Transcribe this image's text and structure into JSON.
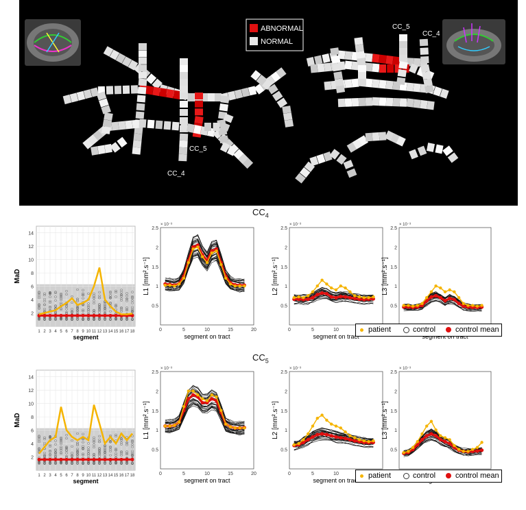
{
  "top_panel": {
    "legend": {
      "abnormal": "ABNORMAL",
      "normal": "NORMAL"
    },
    "left_labels": {
      "cc4": "CC_4",
      "cc5": "CC_5"
    },
    "right_labels": {
      "cc4": "CC_4",
      "cc5": "CC_5"
    },
    "colors": {
      "abnormal": "#e01010",
      "normal": "#e8e8e8",
      "background": "#000000"
    }
  },
  "rows": [
    {
      "title_base": "CC",
      "title_sub": "4"
    },
    {
      "title_base": "CC",
      "title_sub": "5"
    }
  ],
  "legend": {
    "patient": "patient",
    "control": "control",
    "control_mean": "control mean"
  },
  "chart_data": [
    {
      "type": "scatter",
      "row": 0,
      "panel": "MaD",
      "ylabel": "MaD",
      "xlabel": "segment",
      "xticks": [
        1,
        2,
        3,
        4,
        5,
        6,
        7,
        8,
        9,
        10,
        11,
        12,
        13,
        14,
        15,
        16,
        17,
        18
      ],
      "ylim": [
        0,
        15
      ],
      "yticks": [
        2,
        4,
        6,
        8,
        10,
        12,
        14
      ],
      "threshold": 6.3,
      "grid": true,
      "patient": [
        1.8,
        2.0,
        2.2,
        2.4,
        3.0,
        3.5,
        4.2,
        3.2,
        3.5,
        4.0,
        6.0,
        8.8,
        4.0,
        3.0,
        2.2,
        1.8,
        1.8,
        1.9
      ],
      "control_mean": [
        1.6,
        1.6,
        1.6,
        1.6,
        1.6,
        1.6,
        1.6,
        1.6,
        1.6,
        1.6,
        1.6,
        1.6,
        1.6,
        1.6,
        1.6,
        1.6,
        1.6,
        1.6
      ]
    },
    {
      "type": "line",
      "row": 0,
      "panel": "L1",
      "ylabel": "L1 [mm².s⁻¹]",
      "xlabel": "segment on tract",
      "exponent": "× 10⁻³",
      "xlim": [
        0,
        20
      ],
      "xticks": [
        0,
        5,
        10,
        15,
        20
      ],
      "ylim": [
        0,
        2.5
      ],
      "yticks": [
        0,
        0.5,
        1,
        1.5,
        2,
        2.5
      ],
      "x": [
        1,
        2,
        3,
        4,
        5,
        6,
        7,
        8,
        9,
        10,
        11,
        12,
        13,
        14,
        15,
        16,
        17,
        18
      ],
      "patient": [
        1.02,
        1.02,
        1.0,
        1.05,
        1.2,
        1.6,
        1.95,
        2.0,
        1.75,
        1.6,
        1.85,
        1.9,
        1.55,
        1.2,
        1.05,
        1.0,
        1.0,
        1.0
      ],
      "control_mean": [
        1.05,
        1.04,
        1.02,
        1.06,
        1.25,
        1.65,
        2.0,
        2.05,
        1.8,
        1.65,
        1.9,
        1.95,
        1.6,
        1.25,
        1.08,
        1.03,
        1.02,
        1.02
      ]
    },
    {
      "type": "line",
      "row": 0,
      "panel": "L2",
      "ylabel": "L2 [mm².s⁻¹]",
      "xlabel": "segment on tract",
      "exponent": "× 10⁻³",
      "xlim": [
        0,
        20
      ],
      "xticks": [
        0,
        5,
        10,
        15,
        20
      ],
      "ylim": [
        0,
        2.5
      ],
      "yticks": [
        0,
        0.5,
        1,
        1.5,
        2,
        2.5
      ],
      "x": [
        1,
        2,
        3,
        4,
        5,
        6,
        7,
        8,
        9,
        10,
        11,
        12,
        13,
        14,
        15,
        16,
        17,
        18
      ],
      "patient": [
        0.7,
        0.72,
        0.7,
        0.75,
        0.85,
        1.0,
        1.15,
        1.05,
        0.95,
        0.9,
        1.0,
        0.95,
        0.85,
        0.75,
        0.72,
        0.7,
        0.7,
        0.72
      ],
      "control_mean": [
        0.66,
        0.66,
        0.65,
        0.66,
        0.7,
        0.78,
        0.82,
        0.8,
        0.72,
        0.7,
        0.73,
        0.72,
        0.7,
        0.68,
        0.66,
        0.65,
        0.66,
        0.67
      ]
    },
    {
      "type": "line",
      "row": 0,
      "panel": "L3",
      "ylabel": "L3 [mm².s⁻¹]",
      "xlabel": "segment on tract",
      "exponent": "× 10⁻³",
      "xlim": [
        0,
        20
      ],
      "xticks": [
        0,
        5,
        10,
        15,
        20
      ],
      "ylim": [
        0,
        2.5
      ],
      "yticks": [
        0,
        0.5,
        1,
        1.5,
        2,
        2.5
      ],
      "x": [
        1,
        2,
        3,
        4,
        5,
        6,
        7,
        8,
        9,
        10,
        11,
        12,
        13,
        14,
        15,
        16,
        17,
        18
      ],
      "patient": [
        0.5,
        0.5,
        0.48,
        0.5,
        0.55,
        0.7,
        0.85,
        1.0,
        0.95,
        0.85,
        0.9,
        0.85,
        0.7,
        0.55,
        0.5,
        0.5,
        0.48,
        0.5
      ],
      "control_mean": [
        0.46,
        0.46,
        0.45,
        0.46,
        0.5,
        0.62,
        0.72,
        0.75,
        0.7,
        0.62,
        0.68,
        0.65,
        0.55,
        0.48,
        0.46,
        0.45,
        0.45,
        0.46
      ]
    },
    {
      "type": "scatter",
      "row": 1,
      "panel": "MaD",
      "ylabel": "MaD",
      "xlabel": "segment",
      "xticks": [
        1,
        2,
        3,
        4,
        5,
        6,
        7,
        8,
        9,
        10,
        11,
        12,
        13,
        14,
        15,
        16,
        17,
        18
      ],
      "ylim": [
        0,
        15
      ],
      "yticks": [
        2,
        4,
        6,
        8,
        10,
        12,
        14
      ],
      "threshold": 6.3,
      "grid": true,
      "patient": [
        2.5,
        3.5,
        4.5,
        5.0,
        9.5,
        6.0,
        5.0,
        4.5,
        5.0,
        4.5,
        9.8,
        7.0,
        4.0,
        5.0,
        4.0,
        5.5,
        4.5,
        5.5
      ],
      "control_mean": [
        1.6,
        1.6,
        1.6,
        1.6,
        1.6,
        1.6,
        1.6,
        1.6,
        1.6,
        1.6,
        1.6,
        1.6,
        1.6,
        1.6,
        1.6,
        1.6,
        1.6,
        1.6
      ]
    },
    {
      "type": "line",
      "row": 1,
      "panel": "L1",
      "ylabel": "L1 [mm².s⁻¹]",
      "xlabel": "segment on tract",
      "exponent": "× 10⁻³",
      "xlim": [
        0,
        20
      ],
      "xticks": [
        0,
        5,
        10,
        15,
        20
      ],
      "ylim": [
        0,
        2.5
      ],
      "yticks": [
        0,
        0.5,
        1,
        1.5,
        2,
        2.5
      ],
      "x": [
        1,
        2,
        3,
        4,
        5,
        6,
        7,
        8,
        9,
        10,
        11,
        12,
        13,
        14,
        15,
        16,
        17,
        18
      ],
      "patient": [
        1.1,
        1.1,
        1.12,
        1.2,
        1.6,
        2.0,
        2.0,
        1.9,
        1.8,
        1.75,
        1.9,
        1.85,
        1.5,
        1.15,
        1.08,
        1.05,
        1.05,
        1.05
      ],
      "control_mean": [
        1.1,
        1.1,
        1.12,
        1.2,
        1.5,
        1.8,
        1.9,
        1.85,
        1.7,
        1.7,
        1.8,
        1.75,
        1.45,
        1.15,
        1.08,
        1.05,
        1.05,
        1.06
      ]
    },
    {
      "type": "line",
      "row": 1,
      "panel": "L2",
      "ylabel": "L2 [mm².s⁻¹]",
      "xlabel": "segment on tract",
      "exponent": "× 10⁻³",
      "xlim": [
        0,
        20
      ],
      "xticks": [
        0,
        5,
        10,
        15,
        20
      ],
      "ylim": [
        0,
        2.5
      ],
      "yticks": [
        0,
        0.5,
        1,
        1.5,
        2,
        2.5
      ],
      "x": [
        1,
        2,
        3,
        4,
        5,
        6,
        7,
        8,
        9,
        10,
        11,
        12,
        13,
        14,
        15,
        16,
        17,
        18
      ],
      "patient": [
        0.62,
        0.65,
        0.75,
        0.9,
        1.1,
        1.3,
        1.38,
        1.25,
        1.15,
        1.1,
        1.05,
        0.95,
        0.85,
        0.8,
        0.75,
        0.72,
        0.7,
        0.72
      ],
      "control_mean": [
        0.6,
        0.62,
        0.68,
        0.75,
        0.82,
        0.88,
        0.9,
        0.88,
        0.85,
        0.82,
        0.8,
        0.78,
        0.75,
        0.72,
        0.7,
        0.68,
        0.67,
        0.68
      ]
    },
    {
      "type": "line",
      "row": 1,
      "panel": "L3",
      "ylabel": "L3 [mm².s⁻¹]",
      "xlabel": "segment on tract",
      "exponent": "× 10⁻³",
      "xlim": [
        0,
        20
      ],
      "xticks": [
        0,
        5,
        10,
        15,
        20
      ],
      "ylim": [
        0,
        2.5
      ],
      "yticks": [
        0,
        0.5,
        1,
        1.5,
        2,
        2.5
      ],
      "x": [
        1,
        2,
        3,
        4,
        5,
        6,
        7,
        8,
        9,
        10,
        11,
        12,
        13,
        14,
        15,
        16,
        17,
        18
      ],
      "patient": [
        0.42,
        0.45,
        0.55,
        0.7,
        0.9,
        1.1,
        1.22,
        1.0,
        0.85,
        0.8,
        0.75,
        0.6,
        0.5,
        0.45,
        0.45,
        0.5,
        0.55,
        0.68
      ],
      "control_mean": [
        0.4,
        0.42,
        0.5,
        0.62,
        0.75,
        0.85,
        0.9,
        0.85,
        0.75,
        0.7,
        0.65,
        0.55,
        0.48,
        0.45,
        0.44,
        0.45,
        0.46,
        0.48
      ]
    }
  ]
}
